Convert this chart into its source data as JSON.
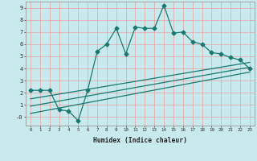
{
  "xlabel": "Humidex (Indice chaleur)",
  "bg_color": "#c8eaec",
  "line_color": "#1a7870",
  "grid_color": "#e8a0a0",
  "xlim": [
    -0.5,
    23.5
  ],
  "ylim": [
    -0.7,
    9.5
  ],
  "xticks": [
    0,
    1,
    2,
    3,
    4,
    5,
    6,
    7,
    8,
    9,
    10,
    11,
    12,
    13,
    14,
    15,
    16,
    17,
    18,
    19,
    20,
    21,
    22,
    23
  ],
  "yticks": [
    0,
    1,
    2,
    3,
    4,
    5,
    6,
    7,
    8,
    9
  ],
  "line1_x": [
    0,
    1,
    2,
    3,
    4,
    5,
    6,
    7,
    8,
    9,
    10,
    11,
    12,
    13,
    14,
    15,
    16,
    17,
    18,
    19,
    20,
    21,
    22,
    23
  ],
  "line1_y": [
    2.2,
    2.2,
    2.2,
    0.6,
    0.5,
    -0.3,
    2.2,
    5.4,
    6.0,
    7.3,
    5.2,
    7.4,
    7.3,
    7.3,
    9.2,
    6.9,
    7.0,
    6.2,
    6.0,
    5.3,
    5.2,
    4.9,
    4.7,
    4.0
  ],
  "line2_x": [
    0,
    23
  ],
  "line2_y": [
    1.5,
    4.5
  ],
  "line3_x": [
    0,
    23
  ],
  "line3_y": [
    0.9,
    4.1
  ],
  "line4_x": [
    0,
    23
  ],
  "line4_y": [
    0.3,
    3.7
  ],
  "markersize": 2.5,
  "linewidth": 0.9
}
